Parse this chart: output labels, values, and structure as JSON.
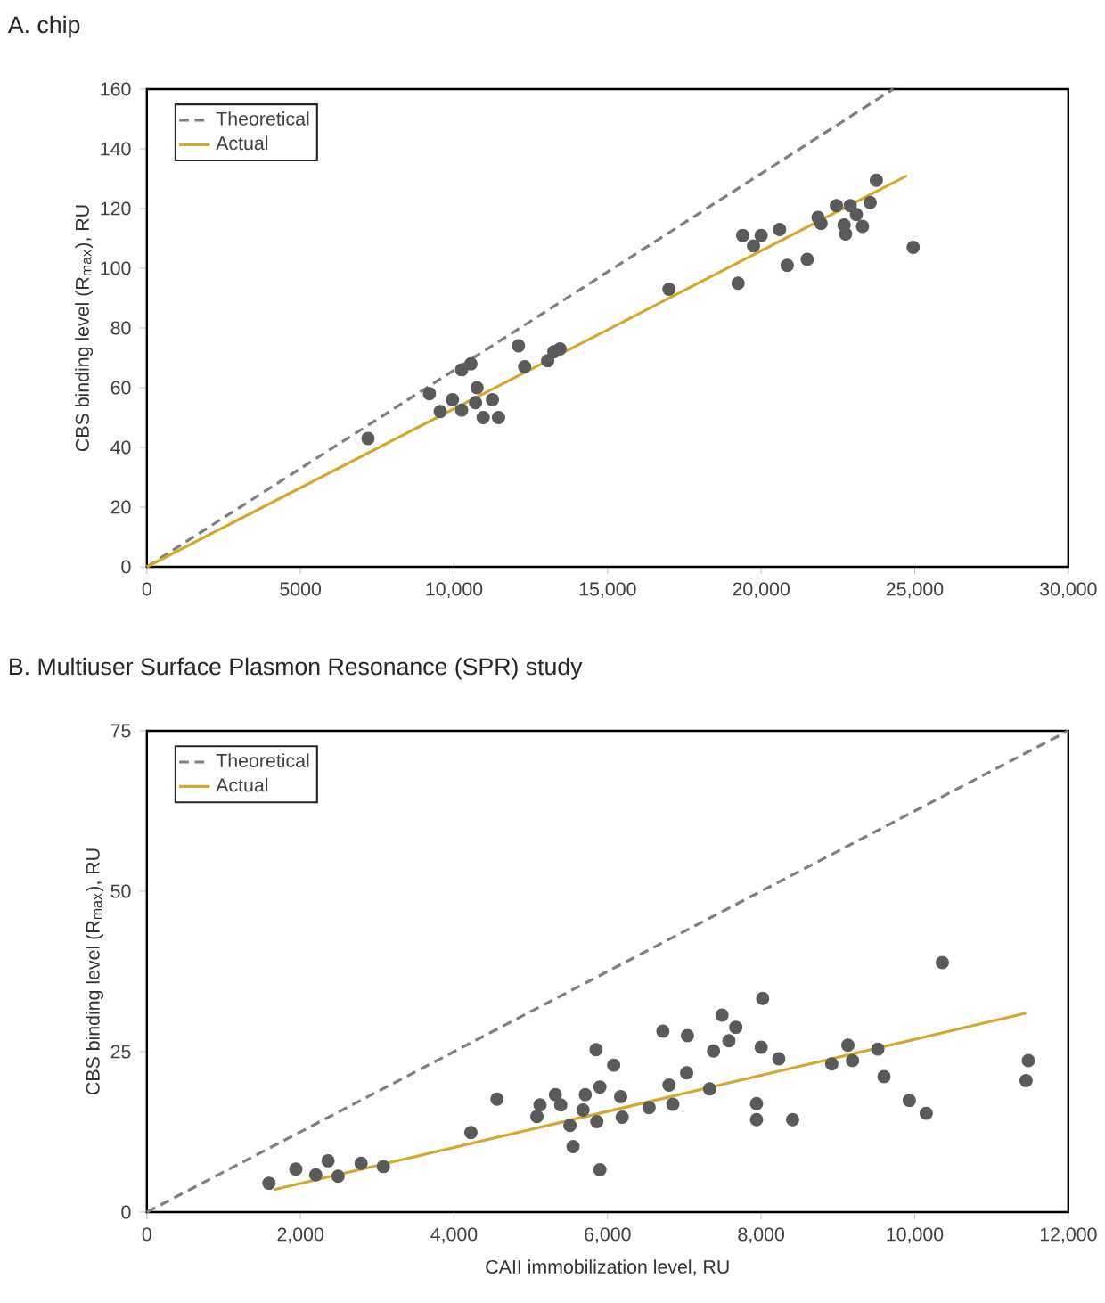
{
  "chart_data": [
    {
      "type": "scatter",
      "title": "A. chip",
      "ylabel": "CBS binding level (R$_{max}$), RU",
      "xlim": [
        0,
        30000
      ],
      "ylim": [
        0,
        160
      ],
      "xticks": [
        0,
        5000,
        {
          "value": 10000,
          "label": "10,000"
        },
        {
          "value": 15000,
          "label": "15,000"
        },
        {
          "value": 20000,
          "label": "20,000"
        },
        {
          "value": 25000,
          "label": "25,000"
        },
        {
          "value": 30000,
          "label": "30,000"
        }
      ],
      "yticks": [
        0,
        20,
        40,
        60,
        80,
        100,
        120,
        140,
        160
      ],
      "grid": false,
      "legend": "top left",
      "series": [
        {
          "marker": "circle",
          "color": "#5a5a5a",
          "x": [
            7200,
            9200,
            9550,
            9950,
            10250,
            10250,
            10550,
            10750,
            10700,
            10950,
            11250,
            11450,
            12100,
            12300,
            13050,
            13250,
            13450,
            17000,
            19250,
            19400,
            19750,
            20000,
            20600,
            20850,
            21500,
            21850,
            21950,
            22450,
            22700,
            22750,
            22900,
            23100,
            23300,
            23550,
            23750,
            24950
          ],
          "values": [
            43,
            58,
            52,
            56,
            52.5,
            66,
            68,
            60,
            55,
            50,
            56,
            50,
            74,
            67,
            69,
            72,
            73,
            93,
            95,
            111,
            107.5,
            111,
            113,
            101,
            103,
            117,
            115,
            121,
            114.5,
            111.5,
            121,
            118,
            114,
            122,
            129.5,
            107
          ]
        },
        {
          "type": "line",
          "name": "Theoretical",
          "line_style": "dashed",
          "marker": "none",
          "color": "#7f7f7f",
          "x": [
            0,
            24300
          ],
          "values": [
            0,
            160
          ]
        },
        {
          "type": "line",
          "name": "Actual",
          "line_style": "solid",
          "marker": "none",
          "color": "#d4a830",
          "x": [
            0,
            24750
          ],
          "values": [
            0,
            131
          ]
        }
      ]
    },
    {
      "type": "scatter",
      "title": "B. Multiuser Surface Plasmon Resonance (SPR) study",
      "xlabel": "CAII immobilization level, RU",
      "ylabel": "CBS binding level (R$_{max}$), RU",
      "xlim": [
        0,
        12000
      ],
      "ylim": [
        0,
        75
      ],
      "xticks": [
        0,
        {
          "value": 2000,
          "label": "2,000"
        },
        {
          "value": 4000,
          "label": "4,000"
        },
        {
          "value": 6000,
          "label": "6,000"
        },
        {
          "value": 8000,
          "label": "8,000"
        },
        {
          "value": 10000,
          "label": "10,000"
        },
        {
          "value": 12000,
          "label": "12,000"
        }
      ],
      "yticks": [
        0,
        25,
        50,
        75
      ],
      "grid": false,
      "legend": "top left",
      "series": [
        {
          "marker": "circle",
          "color": "#5a5a5a",
          "x": [
            1590,
            1940,
            2200,
            2360,
            2490,
            2790,
            3080,
            4220,
            4560,
            5080,
            5120,
            5320,
            5390,
            5510,
            5550,
            5680,
            5710,
            5850,
            5860,
            5900,
            5900,
            6080,
            6170,
            6190,
            6540,
            6720,
            6800,
            6850,
            7040,
            7030,
            7330,
            7380,
            7490,
            7580,
            7670,
            7940,
            7940,
            8000,
            8020,
            8230,
            8410,
            8920,
            9130,
            9190,
            9520,
            9600,
            9930,
            10150,
            10360,
            11450,
            11480
          ],
          "values": [
            4.5,
            6.7,
            5.8,
            8.0,
            5.6,
            7.6,
            7.1,
            12.4,
            17.6,
            14.9,
            16.7,
            18.3,
            16.7,
            13.5,
            10.2,
            15.9,
            18.3,
            25.3,
            14.1,
            19.5,
            6.6,
            22.9,
            18.0,
            14.8,
            16.3,
            28.2,
            19.8,
            16.8,
            27.5,
            21.7,
            19.2,
            25.1,
            30.7,
            26.7,
            28.8,
            16.9,
            14.4,
            25.7,
            33.3,
            23.9,
            14.4,
            23.1,
            26.0,
            23.6,
            25.4,
            21.1,
            17.4,
            15.4,
            38.9,
            20.5,
            23.6
          ]
        },
        {
          "type": "line",
          "name": "Theoretical",
          "line_style": "dashed",
          "marker": "none",
          "color": "#7f7f7f",
          "x": [
            0,
            12000
          ],
          "values": [
            0,
            75
          ]
        },
        {
          "type": "line",
          "name": "Actual",
          "line_style": "solid",
          "marker": "none",
          "color": "#d4a830",
          "x": [
            1660,
            11450
          ],
          "values": [
            3.5,
            31.0
          ]
        }
      ]
    }
  ]
}
